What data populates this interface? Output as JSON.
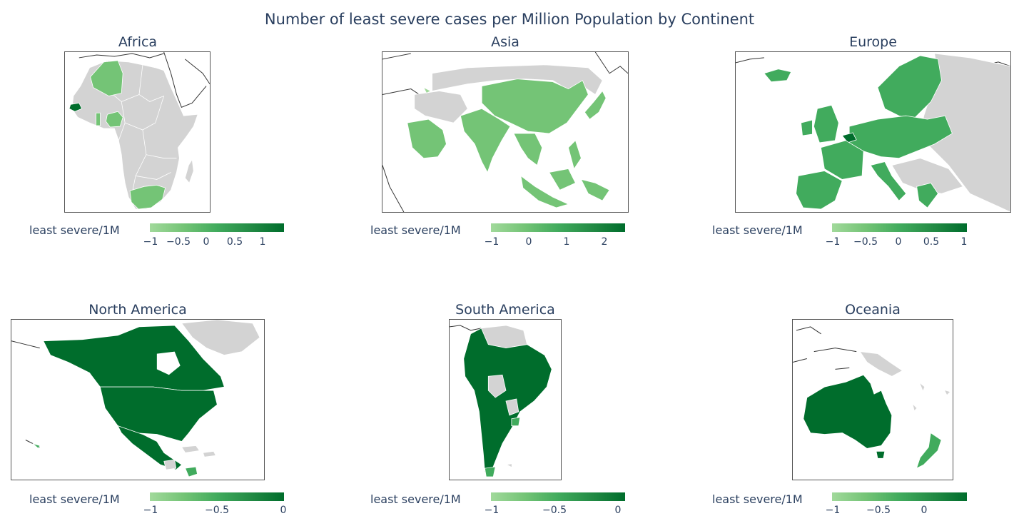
{
  "title": "Number of least severe cases per Million Population by Continent",
  "colorscale": [
    "#a1d99b",
    "#74c476",
    "#41ab5d",
    "#238b45",
    "#006d2c"
  ],
  "no_data_color": "#d3d3d3",
  "panels": [
    {
      "title": "Africa",
      "colorbar": {
        "label": "least severe/1M",
        "ticks": [
          "−1",
          "−0.5",
          "0",
          "0.5",
          "1"
        ]
      }
    },
    {
      "title": "Asia",
      "colorbar": {
        "label": "least severe/1M",
        "ticks": [
          "−1",
          "0",
          "1",
          "2"
        ]
      }
    },
    {
      "title": "Europe",
      "colorbar": {
        "label": "least severe/1M",
        "ticks": [
          "−1",
          "−0.5",
          "0",
          "0.5",
          "1"
        ]
      }
    },
    {
      "title": "North America",
      "colorbar": {
        "label": "least severe/1M",
        "ticks": [
          "−1",
          "−0.5",
          "0"
        ]
      }
    },
    {
      "title": "South America",
      "colorbar": {
        "label": "least severe/1M",
        "ticks": [
          "−1",
          "−0.5",
          "0"
        ]
      }
    },
    {
      "title": "Oceania",
      "colorbar": {
        "label": "least severe/1M",
        "ticks": [
          "−1",
          "−0.5",
          "0"
        ]
      }
    }
  ]
}
